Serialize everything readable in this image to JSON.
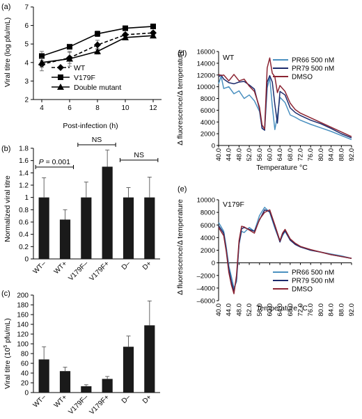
{
  "chart_data": [
    {
      "panel": "(a)",
      "type": "line",
      "xlabel": "Post-infection (h)",
      "ylabel": "Viral titre (log pfu/mL)",
      "x": [
        4,
        6,
        8,
        10,
        12
      ],
      "xticks": [
        "4",
        "6",
        "8",
        "10",
        "12"
      ],
      "yticks": [
        "2",
        "3",
        "4",
        "5",
        "6",
        "7"
      ],
      "ylim": [
        2,
        7
      ],
      "series": [
        {
          "name": "WT",
          "marker": "diamond",
          "dash": true,
          "values": [
            3.9,
            4.25,
            4.95,
            5.5,
            5.6
          ],
          "errors": [
            0.35,
            0.3,
            0.25,
            0.1,
            0.1
          ]
        },
        {
          "name": "V179F",
          "marker": "square",
          "dash": false,
          "values": [
            4.35,
            4.85,
            5.55,
            5.85,
            5.95
          ],
          "errors": [
            0.25,
            0.1,
            0.15,
            0.05,
            0.05
          ]
        },
        {
          "name": "Double mutant",
          "marker": "triangle",
          "dash": false,
          "values": [
            4.0,
            4.2,
            4.6,
            5.35,
            5.45
          ],
          "errors": [
            0.25,
            0.4,
            0.15,
            0.05,
            0.05
          ]
        }
      ]
    },
    {
      "panel": "(b)",
      "type": "bar",
      "ylabel": "Normalized viral titre",
      "categories": [
        "WT–",
        "WT+",
        "V179F–",
        "V179F+",
        "D–",
        "D+"
      ],
      "values": [
        1.0,
        0.64,
        1.0,
        1.5,
        1.0,
        1.0
      ],
      "errors": [
        0.32,
        0.16,
        0.25,
        0.27,
        0.16,
        0.33
      ],
      "yticks": [
        "0",
        "0.2",
        "0.4",
        "0.6",
        "0.8",
        "1",
        "1.2",
        "1.4",
        "1.6",
        "1.8"
      ],
      "ylim": [
        0,
        1.8
      ],
      "annotations": [
        {
          "text_italic": "P",
          "text": " = 0.001",
          "from": 0,
          "to": 1
        },
        {
          "text": "NS",
          "from": 2,
          "to": 3
        },
        {
          "text": "NS",
          "from": 4,
          "to": 5
        }
      ]
    },
    {
      "panel": "(c)",
      "type": "bar",
      "ylabel_main": "Viral titre (10",
      "ylabel_sup": "5",
      "ylabel_end": " pfu/mL)",
      "categories": [
        "WT–",
        "WT+",
        "V179F–",
        "V179F+",
        "D–",
        "D+"
      ],
      "values": [
        68,
        44,
        13,
        28,
        94,
        138
      ],
      "errors": [
        26,
        8,
        3,
        5,
        22,
        50
      ],
      "yticks": [
        "0",
        "20",
        "40",
        "60",
        "80",
        "100",
        "120",
        "140",
        "160",
        "180",
        "200"
      ],
      "ylim": [
        0,
        200
      ]
    },
    {
      "panel": "(d)",
      "type": "line",
      "inner_label": "WT",
      "xlabel": "Temperature °C",
      "ylabel": "Δ fluorescence/Δ temperature",
      "ylim": [
        0,
        16000
      ],
      "yticks": [
        "0",
        "2000",
        "4000",
        "6000",
        "8000",
        "10000",
        "12000",
        "14000",
        "16000"
      ],
      "xlim": [
        40,
        92
      ],
      "xticks": [
        "40.0",
        "44.0",
        "48.0",
        "52.0",
        "56.0",
        "60.0",
        "64.0",
        "68.0",
        "72.0",
        "76.0",
        "80.0",
        "84.0",
        "88.0",
        "92.0"
      ],
      "series": [
        {
          "name": "PR66  500 nM",
          "color": "#4a90c0",
          "x": [
            40,
            41,
            42,
            44,
            46,
            48,
            50,
            52,
            54,
            56,
            57,
            58,
            59,
            60,
            61,
            62,
            63,
            64,
            66,
            68,
            70,
            72,
            76,
            80,
            84,
            88,
            92
          ],
          "y": [
            10500,
            11800,
            9700,
            10000,
            8800,
            9300,
            8000,
            8600,
            7600,
            5800,
            3000,
            2600,
            9800,
            11600,
            6700,
            2700,
            5000,
            8200,
            7300,
            5200,
            4800,
            4300,
            3600,
            3000,
            2400,
            1700,
            1000
          ]
        },
        {
          "name": "PR79 500 nM",
          "color": "#1c2a6b",
          "x": [
            40,
            41,
            42,
            44,
            46,
            48,
            50,
            52,
            54,
            56,
            57,
            58,
            59,
            60,
            61,
            62,
            63,
            64,
            66,
            68,
            70,
            72,
            76,
            80,
            84,
            88,
            92
          ],
          "y": [
            11700,
            12000,
            11300,
            10700,
            10500,
            10800,
            10900,
            10300,
            9600,
            6200,
            2900,
            2600,
            10800,
            11900,
            10800,
            7000,
            3800,
            9200,
            8600,
            6400,
            5600,
            5100,
            4300,
            3700,
            2900,
            2000,
            1300
          ]
        },
        {
          "name": "DMSO",
          "color": "#8b2432",
          "x": [
            40,
            41,
            42,
            44,
            46,
            48,
            50,
            52,
            54,
            56,
            57,
            58,
            59,
            60,
            61,
            62,
            63,
            64,
            66,
            68,
            70,
            72,
            76,
            80,
            84,
            88,
            92
          ],
          "y": [
            12100,
            11900,
            12000,
            11000,
            12100,
            11000,
            11300,
            10100,
            9200,
            6500,
            3500,
            2800,
            13200,
            14900,
            12300,
            11700,
            9000,
            10200,
            9200,
            7200,
            6100,
            5500,
            4700,
            3900,
            3100,
            2300,
            1500
          ]
        }
      ]
    },
    {
      "panel": "(e)",
      "type": "line",
      "inner_label": "V179F",
      "xlabel": "Temperature °C",
      "ylabel": "Δ fluorescence/Δ temperature",
      "ylim": [
        -6000,
        10000
      ],
      "yticks": [
        "–6000",
        "–4000",
        "–2000",
        "0",
        "2000",
        "4000",
        "6000",
        "8000",
        "10000"
      ],
      "xlim": [
        40,
        92
      ],
      "xticks": [
        "40.0",
        "44.0",
        "48.0",
        "52.0",
        "56.0",
        "60.0",
        "64.0",
        "68.0",
        "72.0",
        "76.0",
        "80.0",
        "84.0",
        "88.0",
        "92.0"
      ],
      "series": [
        {
          "name": "PR66  500 nM",
          "color": "#4a90c0",
          "x": [
            40,
            42,
            43,
            44,
            45,
            46,
            47,
            48,
            49,
            50,
            52,
            54,
            56,
            58,
            60,
            62,
            64,
            65,
            66,
            68,
            70,
            72,
            76,
            80,
            84,
            88,
            92
          ],
          "y": [
            6400,
            5000,
            2500,
            -500,
            -2200,
            -4000,
            -3000,
            3000,
            5000,
            4800,
            5600,
            5000,
            7500,
            8800,
            8000,
            5500,
            3400,
            4300,
            5000,
            3600,
            3000,
            2600,
            2000,
            1700,
            1400,
            1100,
            700
          ]
        },
        {
          "name": "PR79 500 nM",
          "color": "#1c2a6b",
          "x": [
            40,
            42,
            43,
            44,
            45,
            46,
            47,
            48,
            49,
            50,
            52,
            54,
            56,
            58,
            60,
            62,
            64,
            65,
            66,
            68,
            70,
            72,
            76,
            80,
            84,
            88,
            92
          ],
          "y": [
            5900,
            4700,
            2000,
            -1000,
            -3000,
            -4500,
            -2500,
            3000,
            5400,
            5600,
            5300,
            5000,
            6800,
            8400,
            8100,
            5800,
            3300,
            4500,
            5100,
            3600,
            2900,
            2500,
            2000,
            1700,
            1300,
            1000,
            700
          ]
        },
        {
          "name": "DMSO",
          "color": "#8b2432",
          "x": [
            40,
            42,
            43,
            44,
            45,
            46,
            47,
            48,
            49,
            50,
            52,
            54,
            56,
            58,
            60,
            62,
            64,
            65,
            66,
            68,
            70,
            72,
            76,
            80,
            84,
            88,
            92
          ],
          "y": [
            5600,
            4300,
            1800,
            -1500,
            -3500,
            -4900,
            -2000,
            3500,
            5800,
            5700,
            5200,
            4700,
            6900,
            8000,
            8400,
            6000,
            3500,
            4700,
            5300,
            3800,
            3100,
            2600,
            2100,
            1700,
            1300,
            1000,
            700
          ]
        }
      ]
    }
  ]
}
